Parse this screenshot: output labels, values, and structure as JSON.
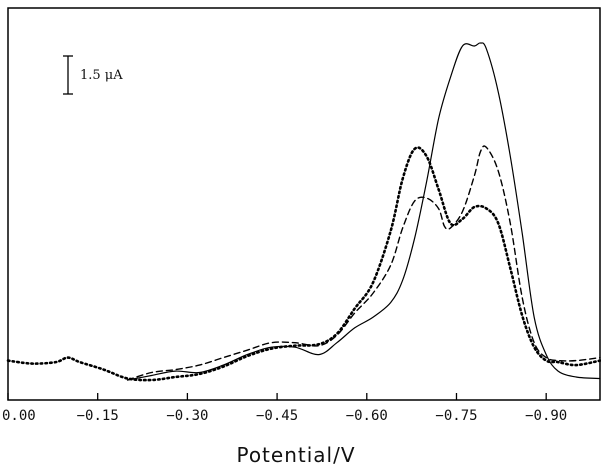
{
  "chart_data": {
    "type": "line",
    "xlabel": "Potential/V",
    "xlim": [
      0.0,
      -0.99
    ],
    "x_ticks": [
      {
        "value": 0.0,
        "label": "0.00"
      },
      {
        "value": -0.15,
        "label": "−0.15"
      },
      {
        "value": -0.3,
        "label": "−0.30"
      },
      {
        "value": -0.45,
        "label": "−0.45"
      },
      {
        "value": -0.6,
        "label": "−0.60"
      },
      {
        "value": -0.75,
        "label": "−0.75"
      },
      {
        "value": -0.9,
        "label": "−0.90"
      }
    ],
    "ylabel": "",
    "ylim": [
      0.0,
      22.8
    ],
    "y_units": "μA",
    "scale_bar": {
      "value": 1.5,
      "label": "1.5 μA"
    },
    "grid": false,
    "series": [
      {
        "style": "solid",
        "x": [
          -0.2,
          -0.24,
          -0.28,
          -0.32,
          -0.36,
          -0.4,
          -0.44,
          -0.48,
          -0.52,
          -0.55,
          -0.58,
          -0.61,
          -0.64,
          -0.66,
          -0.68,
          -0.7,
          -0.72,
          -0.74,
          -0.76,
          -0.78,
          -0.79,
          -0.8,
          -0.82,
          -0.84,
          -0.86,
          -0.88,
          -0.9,
          -0.92,
          -0.95,
          -0.99
        ],
        "y": [
          0.0,
          0.3,
          0.6,
          0.5,
          1.0,
          1.7,
          2.2,
          2.2,
          1.7,
          2.5,
          3.5,
          4.2,
          5.2,
          6.7,
          9.5,
          13.3,
          17.5,
          20.3,
          22.4,
          22.4,
          22.6,
          22.2,
          19.3,
          15.0,
          9.8,
          4.2,
          1.7,
          0.6,
          0.2,
          0.1
        ]
      },
      {
        "style": "dashed",
        "x": [
          -0.2,
          -0.24,
          -0.28,
          -0.32,
          -0.36,
          -0.4,
          -0.44,
          -0.48,
          -0.52,
          -0.55,
          -0.58,
          -0.61,
          -0.64,
          -0.66,
          -0.68,
          -0.7,
          -0.72,
          -0.73,
          -0.74,
          -0.76,
          -0.78,
          -0.79,
          -0.8,
          -0.82,
          -0.84,
          -0.86,
          -0.88,
          -0.9,
          -0.92,
          -0.95,
          -0.99
        ],
        "y": [
          0.0,
          0.5,
          0.7,
          1.0,
          1.5,
          2.0,
          2.5,
          2.5,
          2.3,
          3.0,
          4.5,
          5.8,
          7.7,
          10.2,
          12.0,
          12.2,
          11.5,
          10.3,
          10.2,
          11.3,
          13.7,
          15.3,
          15.6,
          14.0,
          10.5,
          5.5,
          2.5,
          1.5,
          1.3,
          1.3,
          1.5
        ]
      },
      {
        "style": "dotted",
        "x": [
          0.0,
          -0.04,
          -0.08,
          -0.1,
          -0.12,
          -0.16,
          -0.2,
          -0.24,
          -0.28,
          -0.32,
          -0.36,
          -0.4,
          -0.44,
          -0.48,
          -0.52,
          -0.55,
          -0.58,
          -0.61,
          -0.64,
          -0.66,
          -0.68,
          -0.7,
          -0.72,
          -0.74,
          -0.76,
          -0.78,
          -0.8,
          -0.82,
          -0.84,
          -0.86,
          -0.88,
          -0.9,
          -0.92,
          -0.95,
          -0.99
        ],
        "y": [
          1.3,
          1.1,
          1.2,
          1.5,
          1.2,
          0.7,
          0.1,
          0.0,
          0.2,
          0.4,
          0.9,
          1.6,
          2.1,
          2.3,
          2.4,
          3.1,
          4.8,
          6.5,
          10.0,
          13.5,
          15.5,
          15.0,
          12.8,
          10.5,
          10.8,
          11.6,
          11.5,
          10.5,
          7.5,
          4.3,
          2.2,
          1.3,
          1.2,
          1.0,
          1.3
        ]
      }
    ]
  }
}
